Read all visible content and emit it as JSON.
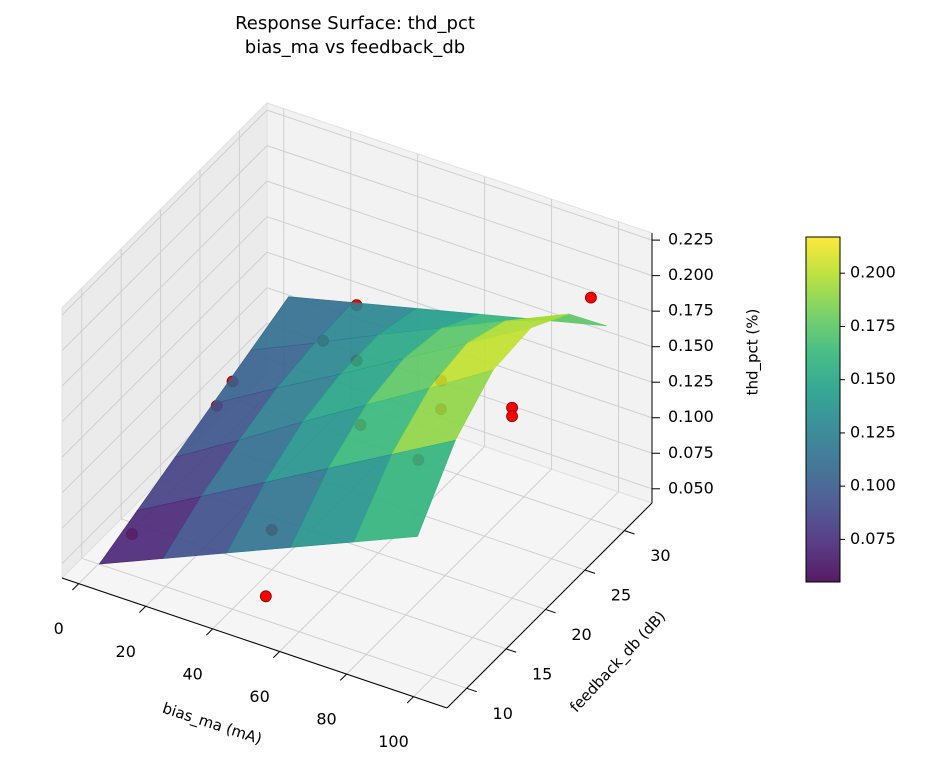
{
  "chart_data": {
    "type": "surface3d",
    "title": "Response Surface: thd_pct\nbias_ma vs feedback_db",
    "xlabel": "bias_ma (mA)",
    "ylabel": "feedback_db (dB)",
    "zlabel": "thd_pct (%)",
    "xlim": [
      -5,
      110
    ],
    "ylim": [
      7.5,
      33.5
    ],
    "zlim": [
      0.04,
      0.23
    ],
    "xticks": [
      0,
      20,
      40,
      60,
      80,
      100
    ],
    "yticks": [
      10,
      15,
      20,
      25,
      30
    ],
    "zticks": [
      {
        "value": 0.05,
        "label": "0.050"
      },
      0.075,
      {
        "value": 0.1,
        "label": "0.100"
      },
      0.125,
      {
        "value": 0.15,
        "label": "0.150"
      },
      0.175,
      {
        "value": 0.2,
        "label": "0.200"
      },
      0.225
    ],
    "colormap": "viridis",
    "surface": {
      "x": [
        5,
        24,
        43,
        62,
        81,
        100
      ],
      "y": [
        8,
        12.8,
        17.6,
        22.4,
        27.2,
        32
      ],
      "z": [
        [
          0.055,
          0.066,
          0.077,
          0.088,
          0.099,
          0.11
        ],
        [
          0.074,
          0.091,
          0.104,
          0.114,
          0.119,
          0.121
        ],
        [
          0.093,
          0.116,
          0.132,
          0.139,
          0.14,
          0.132
        ],
        [
          0.112,
          0.141,
          0.159,
          0.165,
          0.16,
          0.143
        ],
        [
          0.131,
          0.166,
          0.186,
          0.191,
          0.18,
          0.154
        ],
        [
          0.15,
          0.191,
          0.214,
          0.217,
          0.2,
          0.165
        ]
      ]
    },
    "scatter": {
      "color": "#ff0000",
      "x": [
        10,
        50,
        40,
        0,
        0,
        20,
        30,
        30,
        50,
        67,
        67,
        72,
        100,
        100,
        100
      ],
      "y": [
        10,
        10,
        15,
        27,
        25,
        30,
        30,
        30,
        22,
        25,
        25,
        20,
        20,
        20,
        30
      ],
      "z": [
        0.069,
        0.057,
        0.068,
        0.074,
        0.068,
        0.102,
        0.135,
        0.096,
        0.111,
        0.139,
        0.119,
        0.115,
        0.174,
        0.168,
        0.196
      ]
    },
    "colorbar": {
      "lim": [
        0.055,
        0.217
      ],
      "ticks": [
        0.075,
        {
          "value": 0.1,
          "label": "0.100"
        },
        0.125,
        {
          "value": 0.15,
          "label": "0.150"
        },
        0.175,
        {
          "value": 0.2,
          "label": "0.200"
        }
      ]
    }
  }
}
